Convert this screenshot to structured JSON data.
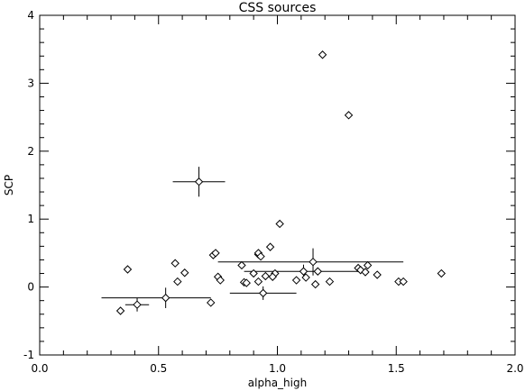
{
  "chart_data": {
    "type": "scatter",
    "title": "CSS sources",
    "xlabel": "alpha_high",
    "ylabel": "SCP",
    "xlim": [
      0.0,
      2.0
    ],
    "ylim": [
      -1.0,
      4.0
    ],
    "xticks": [
      "0.0",
      "0.5",
      "1.0",
      "1.5",
      "2.0"
    ],
    "yticks": [
      "-1",
      "0",
      "1",
      "2",
      "3",
      "4"
    ],
    "grid": false,
    "marker": "diamond",
    "points": [
      {
        "x": 1.19,
        "y": 3.42
      },
      {
        "x": 1.3,
        "y": 2.53
      },
      {
        "x": 0.67,
        "y": 1.55,
        "xerr": [
          0.11,
          0.11
        ],
        "yerr": [
          0.22,
          0.22
        ]
      },
      {
        "x": 1.01,
        "y": 0.93
      },
      {
        "x": 0.97,
        "y": 0.59
      },
      {
        "x": 0.73,
        "y": 0.47
      },
      {
        "x": 0.74,
        "y": 0.5
      },
      {
        "x": 0.92,
        "y": 0.48
      },
      {
        "x": 0.92,
        "y": 0.5
      },
      {
        "x": 0.93,
        "y": 0.45
      },
      {
        "x": 1.15,
        "y": 0.37,
        "xerr": [
          0.4,
          0.38
        ],
        "yerr": [
          0.2,
          0.2
        ]
      },
      {
        "x": 0.57,
        "y": 0.35
      },
      {
        "x": 0.85,
        "y": 0.32
      },
      {
        "x": 0.37,
        "y": 0.26
      },
      {
        "x": 0.61,
        "y": 0.21
      },
      {
        "x": 0.9,
        "y": 0.2
      },
      {
        "x": 1.11,
        "y": 0.23,
        "xerr": [
          0.25,
          0.25
        ],
        "yerr": [
          0.1,
          0.1
        ]
      },
      {
        "x": 1.17,
        "y": 0.23
      },
      {
        "x": 1.34,
        "y": 0.28
      },
      {
        "x": 1.35,
        "y": 0.25
      },
      {
        "x": 1.38,
        "y": 0.32
      },
      {
        "x": 1.37,
        "y": 0.22
      },
      {
        "x": 1.42,
        "y": 0.18
      },
      {
        "x": 0.99,
        "y": 0.2
      },
      {
        "x": 0.95,
        "y": 0.16
      },
      {
        "x": 0.98,
        "y": 0.15
      },
      {
        "x": 1.12,
        "y": 0.14
      },
      {
        "x": 0.75,
        "y": 0.15
      },
      {
        "x": 0.76,
        "y": 0.1
      },
      {
        "x": 0.58,
        "y": 0.08
      },
      {
        "x": 0.86,
        "y": 0.07
      },
      {
        "x": 0.87,
        "y": 0.06
      },
      {
        "x": 0.92,
        "y": 0.08
      },
      {
        "x": 1.08,
        "y": 0.1
      },
      {
        "x": 1.16,
        "y": 0.04
      },
      {
        "x": 1.22,
        "y": 0.08
      },
      {
        "x": 1.51,
        "y": 0.08
      },
      {
        "x": 1.53,
        "y": 0.08
      },
      {
        "x": 1.69,
        "y": 0.2
      },
      {
        "x": 0.94,
        "y": -0.09,
        "xerr": [
          0.14,
          0.14
        ],
        "yerr": [
          0.1,
          0.1
        ]
      },
      {
        "x": 0.53,
        "y": -0.16,
        "xerr": [
          0.27,
          0.19
        ],
        "yerr": [
          0.15,
          0.15
        ]
      },
      {
        "x": 0.72,
        "y": -0.23
      },
      {
        "x": 0.41,
        "y": -0.26,
        "xerr": [
          0.05,
          0.05
        ],
        "yerr": [
          0.1,
          0.1
        ]
      },
      {
        "x": 0.34,
        "y": -0.35
      }
    ]
  }
}
